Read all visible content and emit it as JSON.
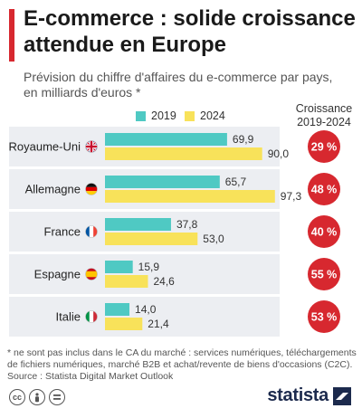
{
  "title": "E-commerce : solide croissance attendue en Europe",
  "subtitle": "Prévision du chiffre d'affaires du e-commerce par pays, en milliards d'euros *",
  "growth_header": "Croissance 2019-2024",
  "colors": {
    "accent": "#d7282f",
    "series_2019": "#4fc9c3",
    "series_2024": "#f8e25a",
    "growth_circle": "#d7282f",
    "row_band": "#eceef2"
  },
  "chart_data": {
    "type": "bar",
    "orientation": "horizontal",
    "categories": [
      "Royaume-Uni",
      "Allemagne",
      "France",
      "Espagne",
      "Italie"
    ],
    "series": [
      {
        "name": "2019",
        "values": [
          69.9,
          65.7,
          37.8,
          15.9,
          14.0
        ],
        "labels": [
          "69,9",
          "65,7",
          "37,8",
          "15,9",
          "14,0"
        ]
      },
      {
        "name": "2024",
        "values": [
          90.0,
          97.3,
          53.0,
          24.6,
          21.4
        ],
        "labels": [
          "90,0",
          "97,3",
          "53,0",
          "24,6",
          "21,4"
        ]
      }
    ],
    "growth": [
      "29 %",
      "48 %",
      "40 %",
      "55 %",
      "53 %"
    ],
    "flags": [
      "uk-flag-icon",
      "germany-flag-icon",
      "france-flag-icon",
      "spain-flag-icon",
      "italy-flag-icon"
    ],
    "xlim": [
      0,
      100
    ]
  },
  "footnote": {
    "note": "* ne sont pas inclus dans le CA du marché : services numériques, téléchargements de fichiers numériques, marché B2B et achat/revente de biens d'occasions (C2C).",
    "source": "Source : Statista Digital Market Outlook"
  },
  "brand": "statista"
}
